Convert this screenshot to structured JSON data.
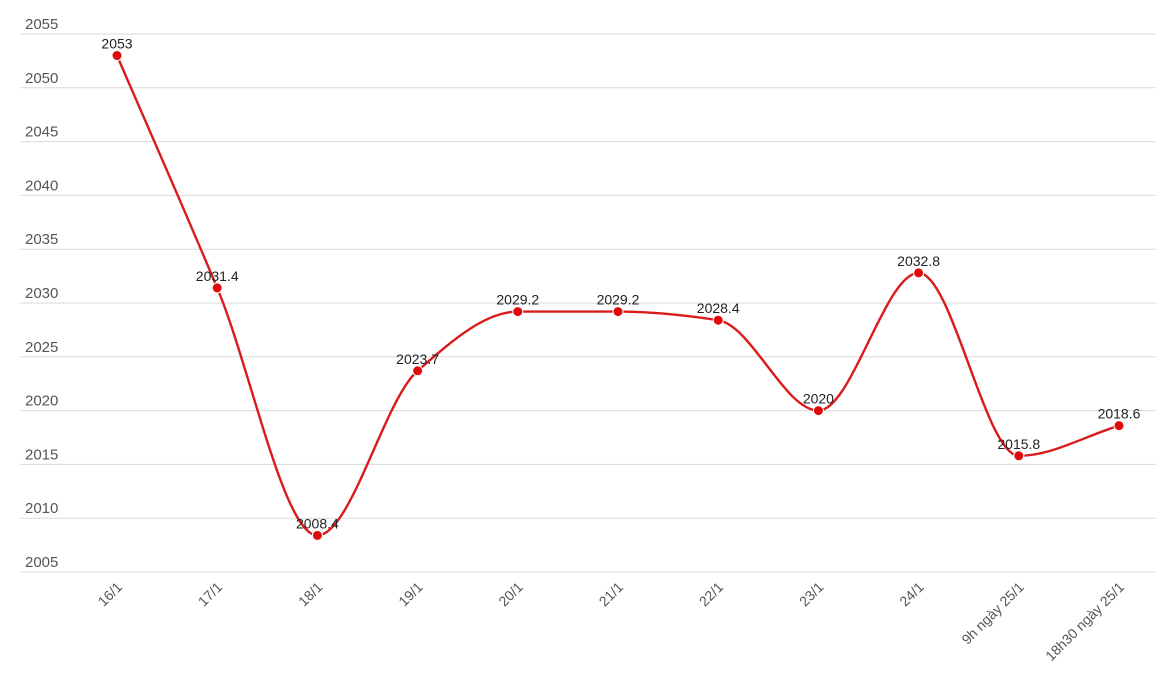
{
  "chart_data": {
    "type": "line",
    "title": "",
    "xlabel": "",
    "ylabel": "",
    "categories": [
      "16/1",
      "17/1",
      "18/1",
      "19/1",
      "20/1",
      "21/1",
      "22/1",
      "23/1",
      "24/1",
      "9h ngày 25/1",
      "18h30 ngày 25/1"
    ],
    "series": [
      {
        "values": [
          2053,
          2031.4,
          2008.4,
          2023.7,
          2029.2,
          2029.2,
          2028.4,
          2020,
          2032.8,
          2015.8,
          2018.6
        ]
      }
    ],
    "data_labels": [
      "2053",
      "2031.4",
      "2008.4",
      "2023.7",
      "2029.2",
      "2029.2",
      "2028.4",
      "2020",
      "2032.8",
      "2015.8",
      "2018.6"
    ],
    "yticks": [
      2005,
      2010,
      2015,
      2020,
      2025,
      2030,
      2035,
      2040,
      2045,
      2050,
      2055
    ],
    "ytick_labels": [
      "2005",
      "2010",
      "2015",
      "2020",
      "2025",
      "2030",
      "2035",
      "2040",
      "2045",
      "2050",
      "2055"
    ],
    "ylim": [
      2005,
      2055
    ],
    "grid": true,
    "legend": "none",
    "colors": {
      "line": "#d91b1b",
      "marker": "#e00a0a",
      "grid": "#d9d9d9"
    }
  }
}
